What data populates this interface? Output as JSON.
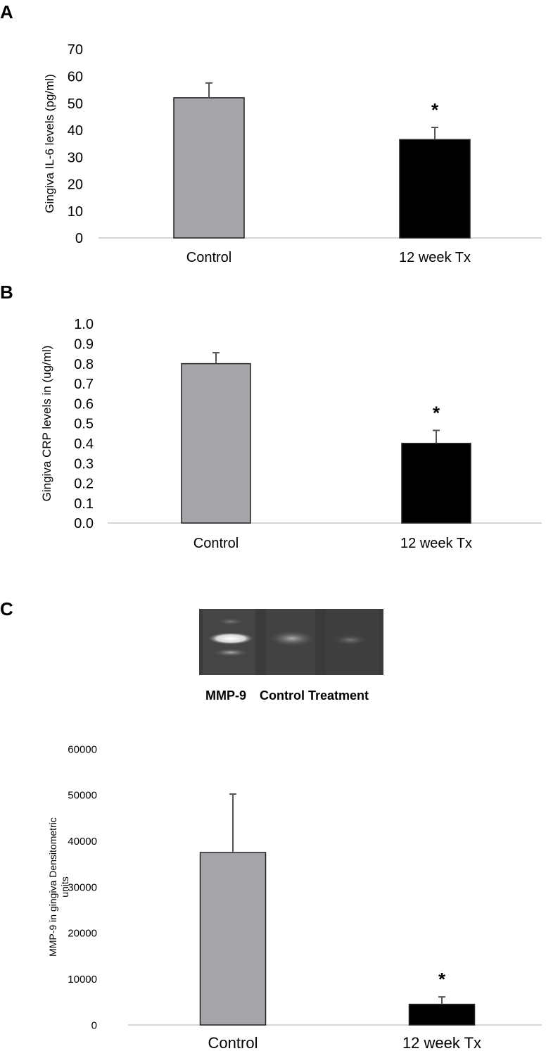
{
  "panels": {
    "a": {
      "letter": "A"
    },
    "b": {
      "letter": "B"
    },
    "c": {
      "letter": "C"
    }
  },
  "gel": {
    "label_ladder": "MMP-9",
    "label_lanes": "Control Treatment"
  },
  "colors": {
    "control": "#a6a6aa",
    "treatment": "#000000",
    "axis": "#c8c8c8",
    "error_bar": "#555555",
    "gel_background": "#3a3a3a"
  },
  "chart_data": [
    {
      "type": "bar",
      "categories": [
        "Control",
        "12 week Tx"
      ],
      "values": [
        52,
        36.5
      ],
      "errors": [
        5.5,
        4.5
      ],
      "significance": [
        "",
        "*"
      ],
      "ylabel": "Gingiva IL-6 levels (pg/ml)",
      "ylim": [
        0,
        70
      ],
      "yticks": [
        "0",
        "10",
        "20",
        "30",
        "40",
        "50",
        "60",
        "70"
      ],
      "grid": false
    },
    {
      "type": "bar",
      "categories": [
        "Control",
        "12 week Tx"
      ],
      "values": [
        0.8,
        0.4
      ],
      "errors": [
        0.055,
        0.065
      ],
      "significance": [
        "",
        "*"
      ],
      "ylabel": "Gingiva CRP levels in (ug/ml)",
      "ylim": [
        0,
        1.0
      ],
      "yticks": [
        "0.0",
        "0.1",
        "0.2",
        "0.3",
        "0.4",
        "0.5",
        "0.6",
        "0.7",
        "0.8",
        "0.9",
        "1.0"
      ],
      "grid": false
    },
    {
      "type": "bar",
      "categories": [
        "Control",
        "12 week Tx"
      ],
      "values": [
        37500,
        4500
      ],
      "errors": [
        12700,
        1600
      ],
      "significance": [
        "",
        "*"
      ],
      "ylabel": "MMP-9 in gingiva Densitometric units",
      "ylim": [
        0,
        60000
      ],
      "yticks": [
        "0",
        "10000",
        "20000",
        "30000",
        "40000",
        "50000",
        "60000"
      ],
      "grid": false
    }
  ]
}
